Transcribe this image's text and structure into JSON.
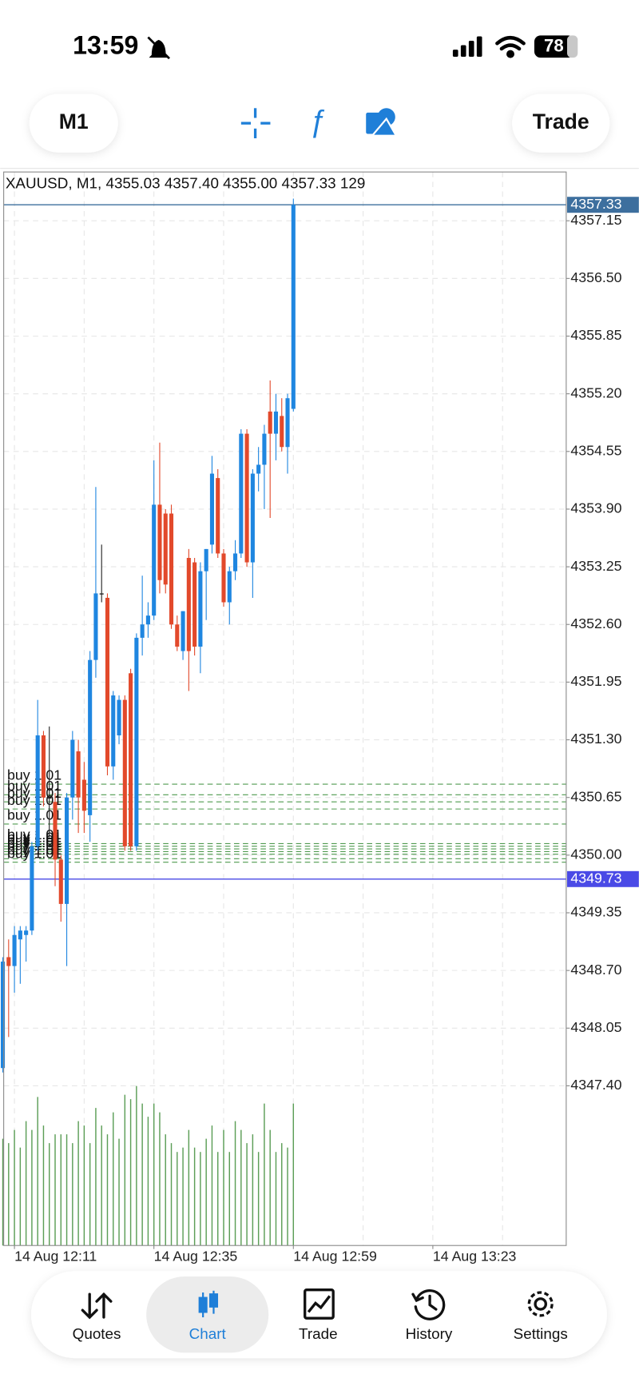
{
  "status_bar": {
    "time": "13:59",
    "battery": "78"
  },
  "toolbar": {
    "timeframe": "M1",
    "trade": "Trade"
  },
  "tab_bar": {
    "tabs": [
      "Quotes",
      "Chart",
      "Trade",
      "History",
      "Settings"
    ],
    "selected": "Chart"
  },
  "chart_data": {
    "type": "candlestick",
    "title": "XAUUSD, M1, 4355.03 4357.40 4355.00 4357.33 129",
    "up_color": "#1f86e0",
    "down_color": "#e2492b",
    "doji_color": "#222222",
    "volume_color": "#5c9e57",
    "grid": true,
    "x": [
      729,
      730,
      731,
      732,
      733,
      734,
      735,
      736,
      737,
      738,
      739,
      740,
      741,
      742,
      743,
      744,
      745,
      746,
      747,
      748,
      749,
      750,
      751,
      752,
      753,
      754,
      755,
      756,
      757,
      758,
      759,
      760,
      761,
      762,
      763,
      764,
      765,
      766,
      767,
      768,
      769,
      770,
      771,
      772,
      773,
      774,
      775,
      776,
      777,
      778,
      779
    ],
    "open": [
      4347.6,
      4348.85,
      4348.75,
      4349.05,
      4349.1,
      4349.15,
      4350.1,
      4351.35,
      4350.65,
      4350.6,
      4349.95,
      4349.45,
      4350.65,
      4351.17,
      4350.85,
      4350.45,
      4352.2,
      4352.95,
      4352.9,
      4351.0,
      4351.35,
      4351.75,
      4352.05,
      4350.1,
      4352.45,
      4352.6,
      4352.7,
      4353.95,
      4353.85,
      4353.85,
      4352.6,
      4352.3,
      4353.35,
      4353.3,
      4352.35,
      4353.2,
      4353.5,
      4354.25,
      4353.4,
      4352.85,
      4353.2,
      4353.4,
      4354.75,
      4353.3,
      4354.3,
      4354.4,
      4355.0,
      4354.75,
      4354.95,
      4354.6,
      4355.03
    ],
    "high": [
      4348.85,
      4349.05,
      4349.2,
      4349.2,
      4349.2,
      4350.15,
      4351.75,
      4351.4,
      4351.45,
      4350.7,
      4350.0,
      4350.7,
      4351.4,
      4351.3,
      4351.05,
      4352.3,
      4354.15,
      4353.5,
      4352.95,
      4351.85,
      4351.8,
      4351.8,
      4352.1,
      4352.5,
      4353.15,
      4352.85,
      4354.45,
      4354.65,
      4353.9,
      4353.95,
      4352.7,
      4352.75,
      4353.45,
      4353.35,
      4353.3,
      4353.45,
      4354.5,
      4354.35,
      4353.45,
      4353.25,
      4353.55,
      4354.8,
      4354.8,
      4354.35,
      4354.6,
      4354.85,
      4355.35,
      4355.2,
      4355.15,
      4355.2,
      4357.4
    ],
    "low": [
      4347.55,
      4347.95,
      4348.45,
      4348.55,
      4348.8,
      4349.1,
      4350.05,
      4350.55,
      4350.2,
      4349.65,
      4349.25,
      4348.75,
      4350.4,
      4350.25,
      4350.25,
      4350.15,
      4352.0,
      4352.85,
      4350.9,
      4350.85,
      4351.25,
      4350.05,
      4350.05,
      4350.05,
      4352.25,
      4352.45,
      4352.65,
      4352.95,
      4352.95,
      4352.55,
      4352.3,
      4352.2,
      4351.85,
      4352.25,
      4352.05,
      4352.65,
      4353.4,
      4353.35,
      4352.8,
      4352.6,
      4353.1,
      4353.35,
      4353.25,
      4352.9,
      4354.1,
      4353.9,
      4353.8,
      4354.45,
      4354.55,
      4354.3,
      4355.0
    ],
    "close": [
      4348.8,
      4348.75,
      4349.1,
      4349.15,
      4349.15,
      4350.1,
      4351.35,
      4350.65,
      4350.65,
      4349.95,
      4349.45,
      4350.65,
      4351.3,
      4350.65,
      4350.5,
      4352.2,
      4352.95,
      4352.95,
      4351.0,
      4351.8,
      4351.75,
      4350.1,
      4350.1,
      4352.45,
      4352.6,
      4352.7,
      4353.95,
      4353.1,
      4353.05,
      4352.6,
      4352.35,
      4352.75,
      4352.3,
      4352.35,
      4353.2,
      4353.45,
      4354.3,
      4353.4,
      4352.85,
      4353.2,
      4353.4,
      4354.75,
      4353.3,
      4354.3,
      4354.4,
      4354.75,
      4354.75,
      4355.0,
      4354.6,
      4355.15,
      4357.33
    ],
    "volume": [
      97,
      93,
      105,
      89,
      113,
      105,
      135,
      109,
      93,
      101,
      101,
      101,
      93,
      113,
      109,
      93,
      125,
      109,
      101,
      121,
      97,
      137,
      133,
      145,
      129,
      117,
      129,
      121,
      101,
      93,
      85,
      89,
      105,
      89,
      85,
      97,
      109,
      85,
      105,
      85,
      113,
      105,
      93,
      101,
      85,
      129,
      105,
      85,
      93,
      89,
      129
    ],
    "xlim": [
      729.15,
      825.95
    ],
    "xticks": [
      {
        "value": 731,
        "label": "14 Aug 12:11"
      },
      {
        "value": 755,
        "label": "14 Aug 12:35"
      },
      {
        "value": 779,
        "label": "14 Aug 12:59"
      },
      {
        "value": 803,
        "label": "14 Aug 13:23"
      }
    ],
    "xgrid": [
      731,
      743,
      755,
      767,
      779,
      791,
      803,
      815
    ],
    "ylim": [
      4345.6,
      4357.7
    ],
    "yticks": [
      4357.15,
      {
        "value": 4356.5,
        "label": "4356.50"
      },
      4355.85,
      {
        "value": 4355.2,
        "label": "4355.20"
      },
      4354.55,
      {
        "value": 4353.9,
        "label": "4353.90"
      },
      4353.25,
      {
        "value": 4352.6,
        "label": "4352.60"
      },
      4351.95,
      {
        "value": 4351.3,
        "label": "4351.30"
      },
      4350.65,
      {
        "value": 4350,
        "label": "4350.00"
      },
      4349.35,
      {
        "value": 4348.7,
        "label": "4348.70"
      },
      4348.05,
      {
        "value": 4347.4,
        "label": "4347.40"
      }
    ],
    "price_lines": [
      {
        "value": 4357.33,
        "color": "#3d6f9e"
      },
      {
        "value": 4349.73,
        "color": "#4a4ae6"
      }
    ],
    "orders": [
      {
        "label": "buy 1.01",
        "price": 4350.8
      },
      {
        "label": "buy 1.01",
        "price": 4350.68
      },
      {
        "label": "buy 1.01",
        "price": 4350.6
      },
      {
        "label": "buy 1.01",
        "price": 4350.52
      },
      {
        "label": "buy 1.01",
        "price": 4350.35
      },
      {
        "label": "buy 1.01",
        "price": 4350.13
      },
      {
        "label": "buy 1.01",
        "price": 4350.1
      },
      {
        "label": "buy 1.01",
        "price": 4350.07
      },
      {
        "label": "buy 1.01",
        "price": 4350.04
      },
      {
        "label": "buy 1.01",
        "price": 4350.01
      },
      {
        "label": "buy 1.01",
        "price": 4349.96
      },
      {
        "label": "buy 1.01",
        "price": 4349.92
      }
    ],
    "order_color": "#4f9a4f"
  }
}
